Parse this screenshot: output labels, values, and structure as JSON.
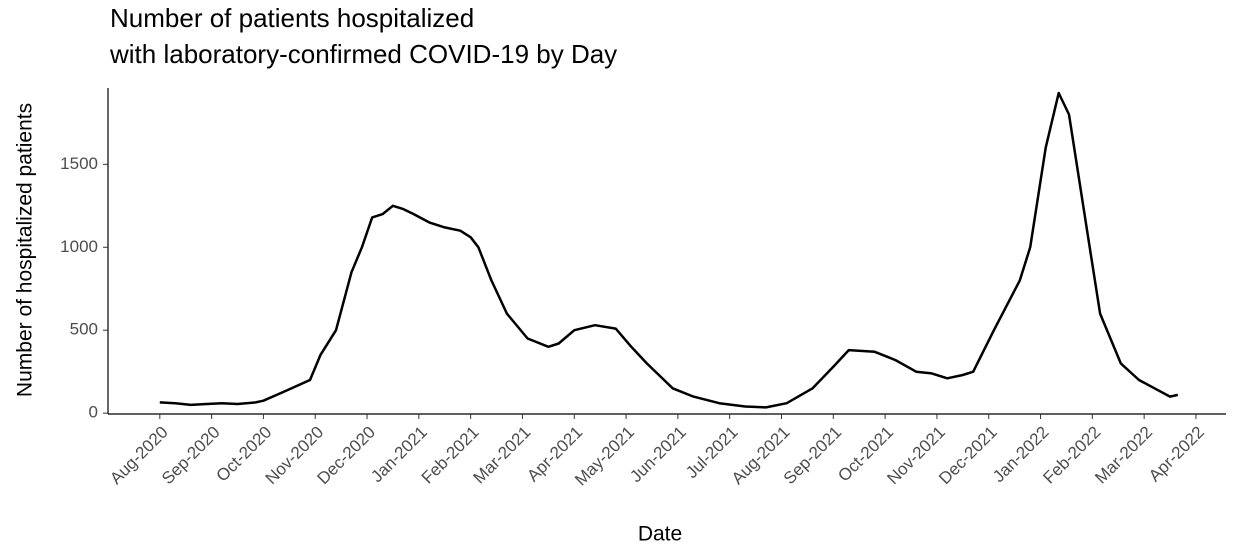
{
  "chart_data": {
    "type": "line",
    "title": [
      "Number of patients hospitalized",
      "with laboratory-confirmed COVID-19 by Day"
    ],
    "x_label": "Date",
    "y_label": "Number of hospitalized patients",
    "color": "#000000",
    "x": [
      0,
      0.3,
      0.6,
      0.9,
      1.2,
      1.5,
      1.85,
      2.0,
      2.4,
      2.9,
      3.1,
      3.4,
      3.7,
      3.9,
      4.1,
      4.3,
      4.5,
      4.7,
      4.9,
      5.2,
      5.5,
      5.8,
      6.0,
      6.15,
      6.4,
      6.7,
      7.1,
      7.5,
      7.7,
      8.0,
      8.4,
      8.8,
      9.1,
      9.4,
      9.9,
      10.3,
      10.8,
      11.3,
      11.7,
      12.1,
      12.6,
      13.0,
      13.3,
      13.8,
      14.2,
      14.6,
      14.9,
      15.2,
      15.5,
      15.7,
      16.1,
      16.6,
      16.8,
      17.1,
      17.35,
      17.55,
      17.95,
      18.15,
      18.55,
      18.9,
      19.2,
      19.5,
      19.65
    ],
    "values": [
      65,
      60,
      50,
      55,
      60,
      55,
      65,
      75,
      130,
      200,
      350,
      500,
      850,
      1000,
      1180,
      1200,
      1250,
      1230,
      1200,
      1150,
      1120,
      1100,
      1060,
      1000,
      800,
      600,
      450,
      400,
      420,
      500,
      530,
      510,
      400,
      300,
      150,
      100,
      60,
      40,
      35,
      60,
      150,
      280,
      380,
      370,
      320,
      250,
      240,
      210,
      230,
      250,
      500,
      800,
      1000,
      1600,
      1930,
      1800,
      1000,
      600,
      300,
      200,
      150,
      100,
      110
    ],
    "xlim": [
      -1.0,
      20.58
    ],
    "xticks": [
      {
        "value": 0,
        "label": "Aug-2020"
      },
      {
        "value": 1,
        "label": "Sep-2020"
      },
      {
        "value": 2,
        "label": "Oct-2020"
      },
      {
        "value": 3,
        "label": "Nov-2020"
      },
      {
        "value": 4,
        "label": "Dec-2020"
      },
      {
        "value": 5,
        "label": "Jan-2021"
      },
      {
        "value": 6,
        "label": "Feb-2021"
      },
      {
        "value": 7,
        "label": "Mar-2021"
      },
      {
        "value": 8,
        "label": "Apr-2021"
      },
      {
        "value": 9,
        "label": "May-2021"
      },
      {
        "value": 10,
        "label": "Jun-2021"
      },
      {
        "value": 11,
        "label": "Jul-2021"
      },
      {
        "value": 12,
        "label": "Aug-2021"
      },
      {
        "value": 13,
        "label": "Sep-2021"
      },
      {
        "value": 14,
        "label": "Oct-2021"
      },
      {
        "value": 15,
        "label": "Nov-2021"
      },
      {
        "value": 16,
        "label": "Dec-2021"
      },
      {
        "value": 17,
        "label": "Jan-2022"
      },
      {
        "value": 18,
        "label": "Feb-2022"
      },
      {
        "value": 19,
        "label": "Mar-2022"
      },
      {
        "value": 20,
        "label": "Apr-2022"
      }
    ],
    "ylim": [
      -5,
      1960
    ],
    "yticks": [
      0,
      500,
      1000,
      1500
    ],
    "grid": false
  }
}
